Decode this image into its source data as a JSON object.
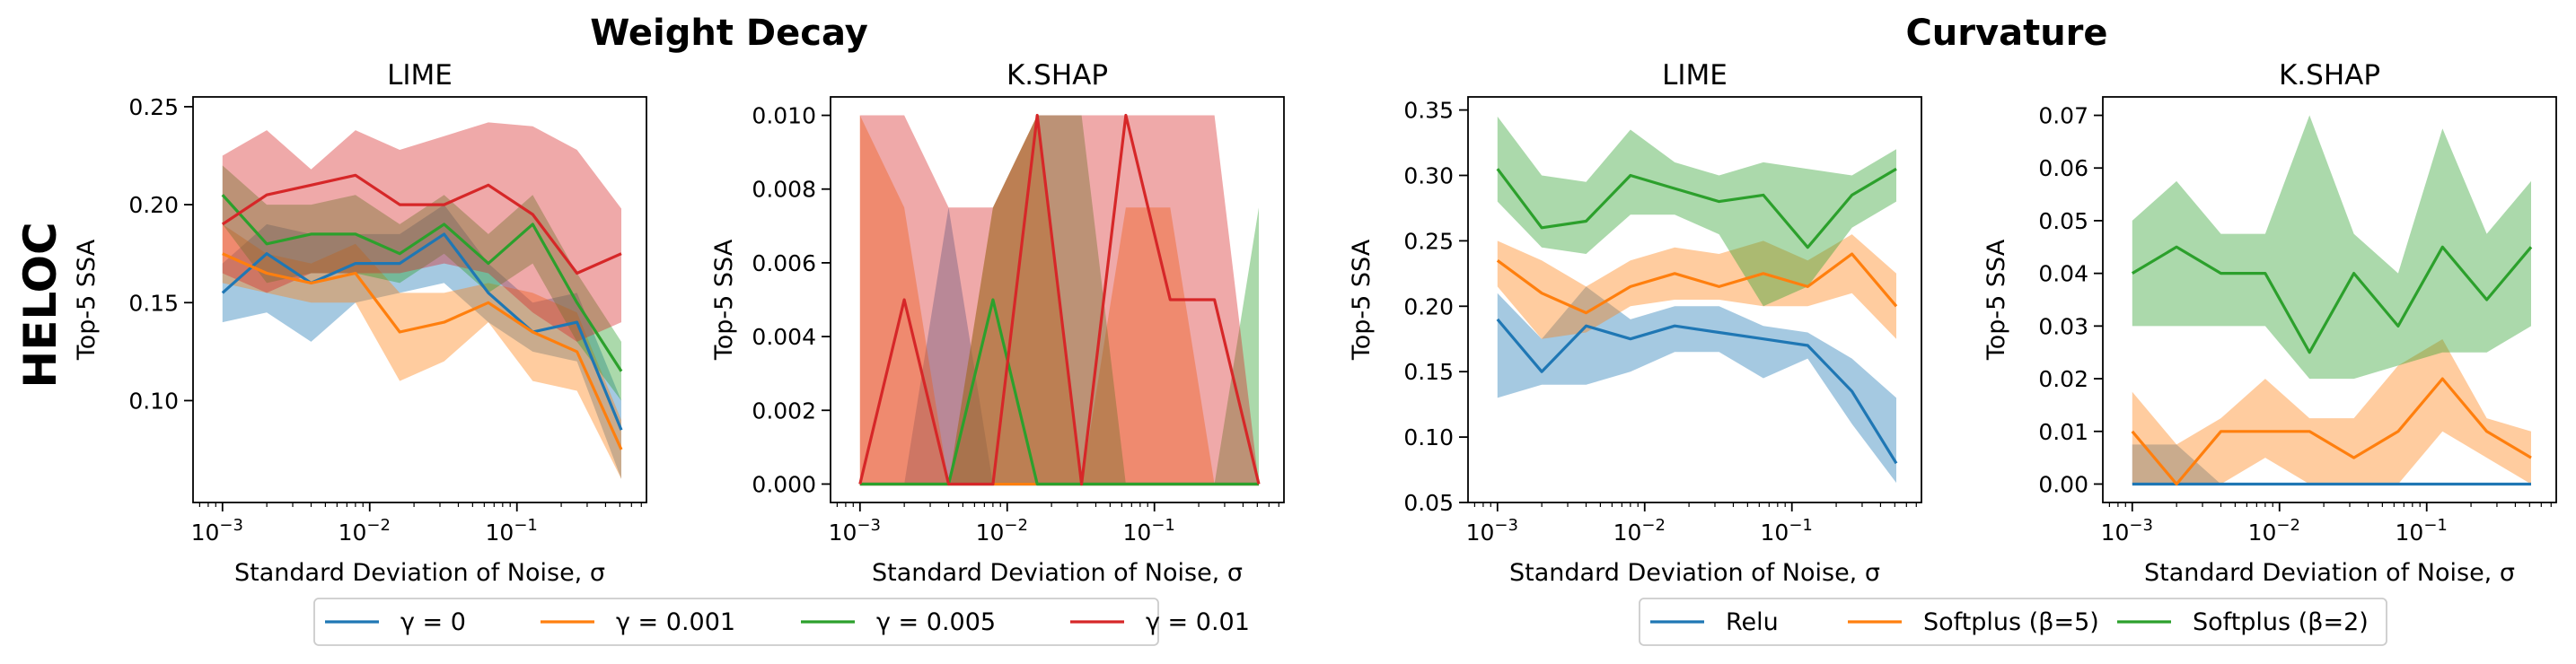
{
  "figure": {
    "group_titles": [
      "Weight Decay",
      "Curvature"
    ],
    "row_label": "HELOC"
  },
  "legends": [
    {
      "entries": [
        {
          "label": "γ = 0",
          "color": "#1f77b4"
        },
        {
          "label": "γ = 0.001",
          "color": "#ff7f0e"
        },
        {
          "label": "γ = 0.005",
          "color": "#2ca02c"
        },
        {
          "label": "γ = 0.01",
          "color": "#d62728"
        }
      ]
    },
    {
      "entries": [
        {
          "label": "Relu",
          "color": "#1f77b4"
        },
        {
          "label": "Softplus (β=5)",
          "color": "#ff7f0e"
        },
        {
          "label": "Softplus (β=2)",
          "color": "#2ca02c"
        }
      ]
    }
  ],
  "chart_data": [
    {
      "type": "line",
      "group": "Weight Decay",
      "title": "LIME",
      "xlabel": "Standard Deviation of Noise, σ",
      "ylabel": "Top-5 SSA",
      "xscale": "log",
      "x": [
        0.001,
        0.002,
        0.004,
        0.008,
        0.016,
        0.032,
        0.064,
        0.128,
        0.256,
        0.512
      ],
      "ylim": [
        0.048,
        0.255
      ],
      "yticks": [
        0.1,
        0.15,
        0.2,
        0.25
      ],
      "series": [
        {
          "name": "γ = 0",
          "color": "#1f77b4",
          "values": [
            0.155,
            0.175,
            0.16,
            0.17,
            0.17,
            0.185,
            0.155,
            0.135,
            0.14,
            0.085
          ],
          "lower": [
            0.14,
            0.145,
            0.13,
            0.15,
            0.155,
            0.16,
            0.14,
            0.125,
            0.12,
            0.06
          ],
          "upper": [
            0.17,
            0.19,
            0.185,
            0.185,
            0.185,
            0.2,
            0.17,
            0.15,
            0.155,
            0.1
          ]
        },
        {
          "name": "γ = 0.001",
          "color": "#ff7f0e",
          "values": [
            0.175,
            0.165,
            0.16,
            0.165,
            0.135,
            0.14,
            0.15,
            0.135,
            0.125,
            0.075
          ],
          "lower": [
            0.16,
            0.155,
            0.15,
            0.15,
            0.11,
            0.12,
            0.14,
            0.11,
            0.105,
            0.06
          ],
          "upper": [
            0.19,
            0.175,
            0.17,
            0.18,
            0.155,
            0.155,
            0.16,
            0.155,
            0.145,
            0.09
          ]
        },
        {
          "name": "γ = 0.005",
          "color": "#2ca02c",
          "values": [
            0.205,
            0.18,
            0.185,
            0.185,
            0.175,
            0.19,
            0.17,
            0.19,
            0.15,
            0.115
          ],
          "lower": [
            0.19,
            0.16,
            0.165,
            0.165,
            0.16,
            0.175,
            0.155,
            0.17,
            0.13,
            0.1
          ],
          "upper": [
            0.22,
            0.2,
            0.2,
            0.205,
            0.19,
            0.205,
            0.185,
            0.205,
            0.165,
            0.13
          ]
        },
        {
          "name": "γ = 0.01",
          "color": "#d62728",
          "values": [
            0.19,
            0.205,
            0.21,
            0.215,
            0.2,
            0.2,
            0.21,
            0.195,
            0.165,
            0.175
          ],
          "lower": [
            0.165,
            0.155,
            0.165,
            0.165,
            0.165,
            0.17,
            0.165,
            0.145,
            0.13,
            0.14
          ],
          "upper": [
            0.225,
            0.238,
            0.218,
            0.238,
            0.228,
            0.235,
            0.242,
            0.24,
            0.228,
            0.198
          ]
        }
      ]
    },
    {
      "type": "line",
      "group": "Weight Decay",
      "title": "K.SHAP",
      "xlabel": "Standard Deviation of Noise, σ",
      "ylabel": "Top-5 SSA",
      "xscale": "log",
      "x": [
        0.001,
        0.002,
        0.004,
        0.008,
        0.016,
        0.032,
        0.064,
        0.128,
        0.256,
        0.512
      ],
      "ylim": [
        -0.0005,
        0.0105
      ],
      "yticks": [
        0.0,
        0.002,
        0.004,
        0.006,
        0.008,
        0.01
      ],
      "series": [
        {
          "name": "γ = 0",
          "color": "#1f77b4",
          "values": [
            0,
            0,
            0,
            0,
            0,
            0,
            0,
            0,
            0,
            0
          ],
          "lower": [
            0,
            0,
            0,
            0,
            0,
            0,
            0,
            0,
            0,
            0
          ],
          "upper": [
            0,
            0,
            0.0075,
            0,
            0,
            0,
            0,
            0,
            0,
            0
          ]
        },
        {
          "name": "γ = 0.001",
          "color": "#ff7f0e",
          "values": [
            0,
            0,
            0,
            0,
            0,
            0,
            0,
            0,
            0,
            0
          ],
          "lower": [
            0,
            0,
            0,
            0,
            0,
            0,
            0,
            0,
            0,
            0
          ],
          "upper": [
            0.01,
            0.0075,
            0,
            0.0075,
            0.01,
            0,
            0.0075,
            0.0075,
            0,
            0
          ]
        },
        {
          "name": "γ = 0.005",
          "color": "#2ca02c",
          "values": [
            0,
            0,
            0,
            0.005,
            0,
            0,
            0,
            0,
            0,
            0
          ],
          "lower": [
            0,
            0,
            0,
            0,
            0,
            0,
            0,
            0,
            0,
            0
          ],
          "upper": [
            0,
            0,
            0,
            0.0075,
            0.01,
            0.01,
            0,
            0,
            0,
            0.0075
          ]
        },
        {
          "name": "γ = 0.01",
          "color": "#d62728",
          "values": [
            0,
            0.005,
            0,
            0,
            0.01,
            0,
            0.01,
            0.005,
            0.005,
            0
          ],
          "lower": [
            0,
            0,
            0,
            0,
            0,
            0,
            0,
            0,
            0,
            0
          ],
          "upper": [
            0.01,
            0.01,
            0.0075,
            0.0075,
            0.01,
            0.01,
            0.01,
            0.01,
            0.01,
            0
          ]
        }
      ]
    },
    {
      "type": "line",
      "group": "Curvature",
      "title": "LIME",
      "xlabel": "Standard Deviation of Noise, σ",
      "ylabel": "Top-5 SSA",
      "xscale": "log",
      "x": [
        0.001,
        0.002,
        0.004,
        0.008,
        0.016,
        0.032,
        0.064,
        0.128,
        0.256,
        0.512
      ],
      "ylim": [
        0.05,
        0.36
      ],
      "yticks": [
        0.05,
        0.1,
        0.15,
        0.2,
        0.25,
        0.3,
        0.35
      ],
      "series": [
        {
          "name": "Relu",
          "color": "#1f77b4",
          "values": [
            0.19,
            0.15,
            0.185,
            0.175,
            0.185,
            0.18,
            0.175,
            0.17,
            0.135,
            0.08
          ],
          "lower": [
            0.13,
            0.14,
            0.14,
            0.15,
            0.165,
            0.165,
            0.145,
            0.16,
            0.11,
            0.065
          ],
          "upper": [
            0.21,
            0.175,
            0.215,
            0.19,
            0.2,
            0.2,
            0.185,
            0.18,
            0.16,
            0.13
          ]
        },
        {
          "name": "Softplus (β=5)",
          "color": "#ff7f0e",
          "values": [
            0.235,
            0.21,
            0.195,
            0.215,
            0.225,
            0.215,
            0.225,
            0.215,
            0.24,
            0.2
          ],
          "lower": [
            0.215,
            0.175,
            0.18,
            0.2,
            0.205,
            0.205,
            0.2,
            0.2,
            0.21,
            0.175
          ],
          "upper": [
            0.25,
            0.235,
            0.215,
            0.235,
            0.245,
            0.24,
            0.25,
            0.235,
            0.255,
            0.225
          ]
        },
        {
          "name": "Softplus (β=2)",
          "color": "#2ca02c",
          "values": [
            0.305,
            0.26,
            0.265,
            0.3,
            0.29,
            0.28,
            0.285,
            0.245,
            0.285,
            0.305
          ],
          "lower": [
            0.28,
            0.245,
            0.24,
            0.27,
            0.27,
            0.255,
            0.2,
            0.215,
            0.26,
            0.28
          ],
          "upper": [
            0.345,
            0.3,
            0.295,
            0.335,
            0.31,
            0.3,
            0.31,
            0.305,
            0.3,
            0.32
          ]
        }
      ]
    },
    {
      "type": "line",
      "group": "Curvature",
      "title": "K.SHAP",
      "xlabel": "Standard Deviation of Noise, σ",
      "ylabel": "Top-5 SSA",
      "xscale": "log",
      "x": [
        0.001,
        0.002,
        0.004,
        0.008,
        0.016,
        0.032,
        0.064,
        0.128,
        0.256,
        0.512
      ],
      "ylim": [
        -0.0035,
        0.0735
      ],
      "yticks": [
        0.0,
        0.01,
        0.02,
        0.03,
        0.04,
        0.05,
        0.06,
        0.07
      ],
      "series": [
        {
          "name": "Relu",
          "color": "#1f77b4",
          "values": [
            0,
            0,
            0,
            0,
            0,
            0,
            0,
            0,
            0,
            0
          ],
          "lower": [
            0,
            0,
            0,
            0,
            0,
            0,
            0,
            0,
            0,
            0
          ],
          "upper": [
            0.0075,
            0.0075,
            0,
            0,
            0,
            0,
            0,
            0,
            0,
            0
          ]
        },
        {
          "name": "Softplus (β=5)",
          "color": "#ff7f0e",
          "values": [
            0.01,
            0,
            0.01,
            0.01,
            0.01,
            0.005,
            0.01,
            0.02,
            0.01,
            0.005
          ],
          "lower": [
            0,
            0,
            0,
            0.005,
            0,
            0,
            0,
            0.01,
            0.005,
            0
          ],
          "upper": [
            0.0175,
            0.0075,
            0.0125,
            0.02,
            0.0125,
            0.0125,
            0.0225,
            0.0275,
            0.0125,
            0.01
          ]
        },
        {
          "name": "Softplus (β=2)",
          "color": "#2ca02c",
          "values": [
            0.04,
            0.045,
            0.04,
            0.04,
            0.025,
            0.04,
            0.03,
            0.045,
            0.035,
            0.045
          ],
          "lower": [
            0.03,
            0.03,
            0.03,
            0.03,
            0.02,
            0.02,
            0.0225,
            0.025,
            0.025,
            0.03
          ],
          "upper": [
            0.05,
            0.0575,
            0.0475,
            0.0475,
            0.07,
            0.0475,
            0.04,
            0.0675,
            0.0475,
            0.0575
          ]
        }
      ]
    }
  ]
}
